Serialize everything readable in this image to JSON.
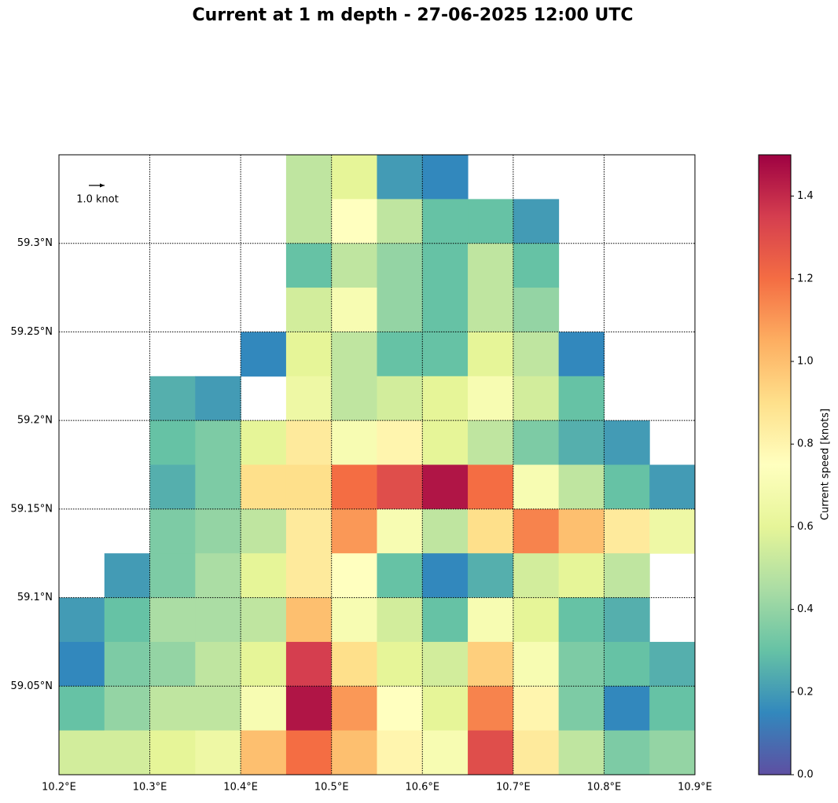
{
  "chart_data": {
    "type": "heatmap",
    "title": "Current at 1 m depth - 27-06-2025 12:00 UTC",
    "colorbar_label": "Current speed [knots]",
    "quiver_key": "1.0 knot",
    "colormap": "Spectral_r",
    "grid": true,
    "xlim": [
      10.2,
      10.9
    ],
    "ylim": [
      59.0,
      59.35
    ],
    "xticks": [
      {
        "value": 10.2,
        "label": "10.2°E"
      },
      {
        "value": 10.3,
        "label": "10.3°E"
      },
      {
        "value": 10.4,
        "label": "10.4°E"
      },
      {
        "value": 10.5,
        "label": "10.5°E"
      },
      {
        "value": 10.6,
        "label": "10.6°E"
      },
      {
        "value": 10.7,
        "label": "10.7°E"
      },
      {
        "value": 10.8,
        "label": "10.8°E"
      },
      {
        "value": 10.9,
        "label": "10.9°E"
      }
    ],
    "yticks": [
      {
        "value": 59.05,
        "label": "59.05°N"
      },
      {
        "value": 59.1,
        "label": "59.1°N"
      },
      {
        "value": 59.15,
        "label": "59.15°N"
      },
      {
        "value": 59.2,
        "label": "59.2°N"
      },
      {
        "value": 59.25,
        "label": "59.25°N"
      },
      {
        "value": 59.3,
        "label": "59.3°N"
      }
    ],
    "clim": [
      0,
      1.5
    ],
    "cticks": [
      {
        "value": 0,
        "label": "0.0"
      },
      0.2,
      0.4,
      0.6,
      0.8,
      {
        "value": 1,
        "label": "1.0"
      },
      1.2,
      1.4
    ],
    "x": [
      10.225,
      10.275,
      10.325,
      10.375,
      10.425,
      10.475,
      10.525,
      10.575,
      10.625,
      10.675,
      10.725,
      10.775,
      10.825,
      10.875
    ],
    "y": [
      59.3375,
      59.3125,
      59.2875,
      59.2625,
      59.2375,
      59.2125,
      59.1875,
      59.1625,
      59.1375,
      59.1125,
      59.0875,
      59.0625,
      59.0375,
      59.0125
    ],
    "values": [
      [
        null,
        null,
        null,
        null,
        null,
        0.5,
        0.6,
        0.2,
        0.15,
        null,
        null,
        null,
        null,
        null
      ],
      [
        null,
        null,
        null,
        null,
        null,
        0.5,
        0.75,
        0.5,
        0.3,
        0.3,
        0.2,
        null,
        null,
        null
      ],
      [
        null,
        null,
        null,
        null,
        null,
        0.3,
        0.5,
        0.4,
        0.3,
        0.5,
        0.3,
        null,
        null,
        null
      ],
      [
        null,
        null,
        null,
        null,
        null,
        0.55,
        0.7,
        0.4,
        0.3,
        0.5,
        0.4,
        null,
        null,
        null
      ],
      [
        null,
        null,
        null,
        null,
        0.15,
        0.6,
        0.5,
        0.3,
        0.3,
        0.6,
        0.5,
        0.15,
        null,
        null
      ],
      [
        null,
        null,
        0.25,
        0.2,
        null,
        0.65,
        0.5,
        0.55,
        0.6,
        0.7,
        0.55,
        0.3,
        null,
        null
      ],
      [
        null,
        null,
        0.3,
        0.35,
        0.6,
        0.85,
        0.7,
        0.8,
        0.6,
        0.5,
        0.35,
        0.25,
        0.2,
        null
      ],
      [
        null,
        null,
        0.25,
        0.35,
        0.9,
        0.9,
        1.2,
        1.3,
        1.45,
        1.2,
        0.7,
        0.5,
        0.3,
        0.2
      ],
      [
        null,
        null,
        0.35,
        0.4,
        0.5,
        0.85,
        1.1,
        0.7,
        0.5,
        0.9,
        1.15,
        1.0,
        0.85,
        0.65
      ],
      [
        null,
        0.2,
        0.35,
        0.45,
        0.6,
        0.85,
        0.75,
        0.3,
        0.15,
        0.25,
        0.55,
        0.6,
        0.5,
        null
      ],
      [
        0.2,
        0.3,
        0.45,
        0.45,
        0.5,
        1.0,
        0.7,
        0.55,
        0.3,
        0.7,
        0.6,
        0.3,
        0.25,
        null
      ],
      [
        0.15,
        0.35,
        0.4,
        0.5,
        0.6,
        1.35,
        0.9,
        0.6,
        0.55,
        0.95,
        0.7,
        0.35,
        0.3,
        0.25
      ],
      [
        0.3,
        0.4,
        0.5,
        0.5,
        0.7,
        1.45,
        1.1,
        0.75,
        0.6,
        1.15,
        0.8,
        0.35,
        0.15,
        0.3
      ],
      [
        0.55,
        0.55,
        0.6,
        0.65,
        1.0,
        1.2,
        1.0,
        0.8,
        0.7,
        1.3,
        0.85,
        0.5,
        0.35,
        0.4
      ]
    ]
  }
}
